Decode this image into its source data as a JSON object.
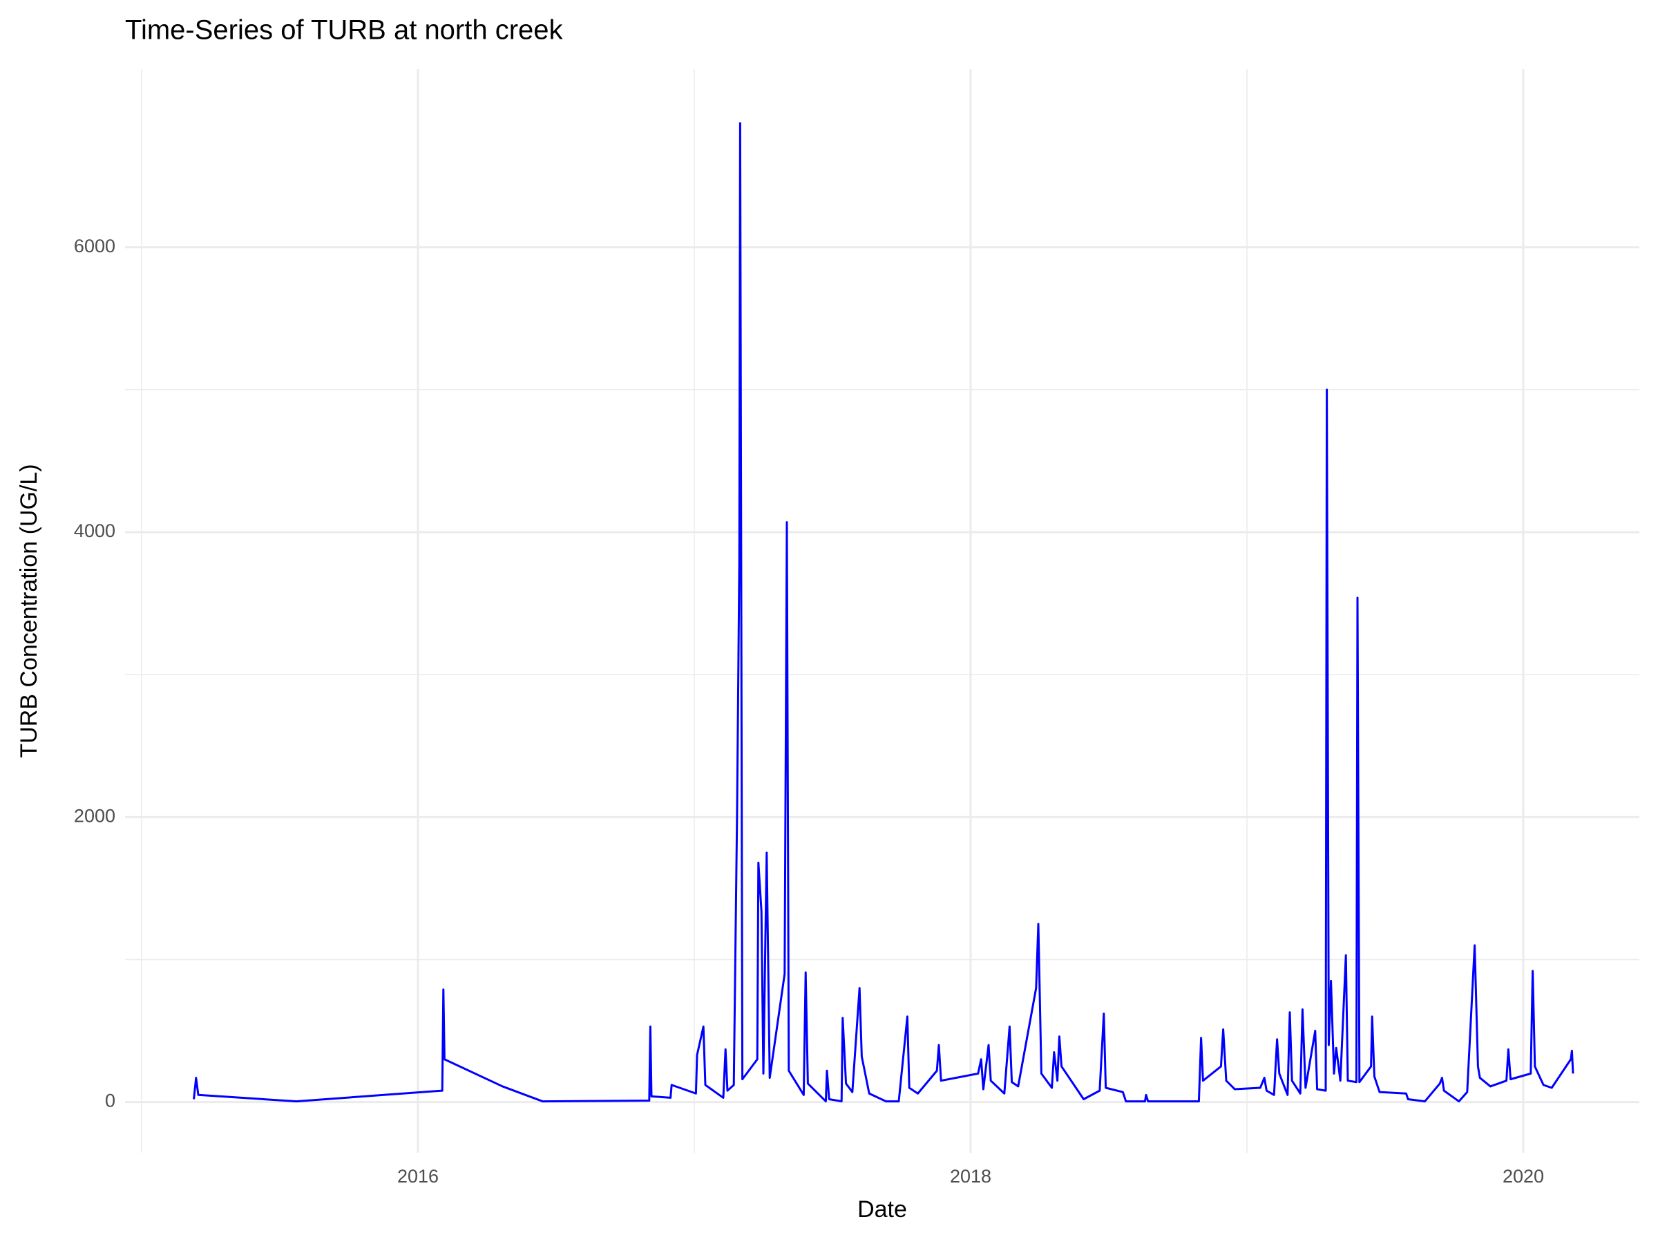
{
  "chart_data": {
    "type": "line",
    "title": "Time-Series of TURB at north creek",
    "x_label": "Date",
    "y_label": "TURB Concentration (UG/L)",
    "xlim": [
      2014.94,
      2020.42
    ],
    "xticks": [
      2016,
      2018,
      2020
    ],
    "x_minor_ticks": [
      2015,
      2017,
      2019
    ],
    "ylim": [
      -356,
      7250
    ],
    "yticks": [
      0,
      2000,
      4000,
      6000
    ],
    "y_minor_ticks": [
      1000,
      3000,
      5000
    ],
    "grid": true,
    "x": [
      2015.189,
      2015.197,
      2015.205,
      2015.56,
      2016.088,
      2016.092,
      2016.096,
      2016.306,
      2016.451,
      2016.837,
      2016.841,
      2016.845,
      2016.914,
      2016.918,
      2017.006,
      2017.01,
      2017.033,
      2017.04,
      2017.105,
      2017.113,
      2017.12,
      2017.143,
      2017.155,
      2017.163,
      2017.166,
      2017.174,
      2017.228,
      2017.232,
      2017.243,
      2017.25,
      2017.262,
      2017.273,
      2017.327,
      2017.335,
      2017.342,
      2017.396,
      2017.403,
      2017.411,
      2017.476,
      2017.48,
      2017.488,
      2017.533,
      2017.537,
      2017.549,
      2017.572,
      2017.598,
      2017.606,
      2017.633,
      2017.694,
      2017.74,
      2017.771,
      2017.778,
      2017.809,
      2017.878,
      2017.885,
      2017.893,
      2018.027,
      2018.038,
      2018.046,
      2018.065,
      2018.073,
      2018.122,
      2018.141,
      2018.149,
      2018.172,
      2018.237,
      2018.245,
      2018.256,
      2018.294,
      2018.302,
      2018.314,
      2018.321,
      2018.329,
      2018.409,
      2018.467,
      2018.482,
      2018.489,
      2018.551,
      2018.562,
      2018.631,
      2018.635,
      2018.642,
      2018.734,
      2018.826,
      2018.834,
      2018.841,
      2018.906,
      2018.914,
      2018.925,
      2018.956,
      2019.048,
      2019.063,
      2019.071,
      2019.098,
      2019.109,
      2019.117,
      2019.147,
      2019.155,
      2019.163,
      2019.193,
      2019.201,
      2019.212,
      2019.247,
      2019.254,
      2019.285,
      2019.289,
      2019.296,
      2019.304,
      2019.315,
      2019.323,
      2019.338,
      2019.358,
      2019.365,
      2019.396,
      2019.4,
      2019.407,
      2019.449,
      2019.453,
      2019.461,
      2019.48,
      2019.576,
      2019.583,
      2019.644,
      2019.698,
      2019.706,
      2019.713,
      2019.767,
      2019.797,
      2019.824,
      2019.836,
      2019.843,
      2019.881,
      2019.939,
      2019.946,
      2019.954,
      2020.027,
      2020.034,
      2020.042,
      2020.073,
      2020.103,
      2020.172,
      2020.176,
      2020.18
    ],
    "series": [
      {
        "name": "TURB",
        "color": "#0000ff",
        "values": [
          20,
          170,
          50,
          5,
          80,
          790,
          300,
          110,
          5,
          10,
          530,
          40,
          30,
          120,
          60,
          330,
          530,
          120,
          30,
          370,
          80,
          120,
          2060,
          3800,
          6870,
          160,
          300,
          1680,
          1340,
          200,
          1750,
          170,
          900,
          4070,
          220,
          50,
          910,
          130,
          5,
          220,
          20,
          5,
          590,
          130,
          70,
          800,
          320,
          60,
          5,
          5,
          600,
          100,
          60,
          220,
          400,
          150,
          200,
          300,
          90,
          400,
          150,
          60,
          530,
          140,
          110,
          800,
          1250,
          200,
          100,
          350,
          150,
          460,
          250,
          20,
          80,
          620,
          100,
          70,
          5,
          5,
          50,
          5,
          5,
          5,
          450,
          150,
          250,
          510,
          150,
          90,
          100,
          170,
          80,
          50,
          440,
          200,
          50,
          630,
          150,
          60,
          650,
          100,
          500,
          90,
          80,
          5000,
          400,
          850,
          200,
          380,
          150,
          1030,
          150,
          140,
          3540,
          140,
          250,
          600,
          180,
          70,
          60,
          20,
          5,
          130,
          170,
          80,
          5,
          70,
          1100,
          250,
          170,
          110,
          150,
          370,
          160,
          200,
          920,
          250,
          120,
          100,
          300,
          360,
          200
        ]
      }
    ]
  }
}
